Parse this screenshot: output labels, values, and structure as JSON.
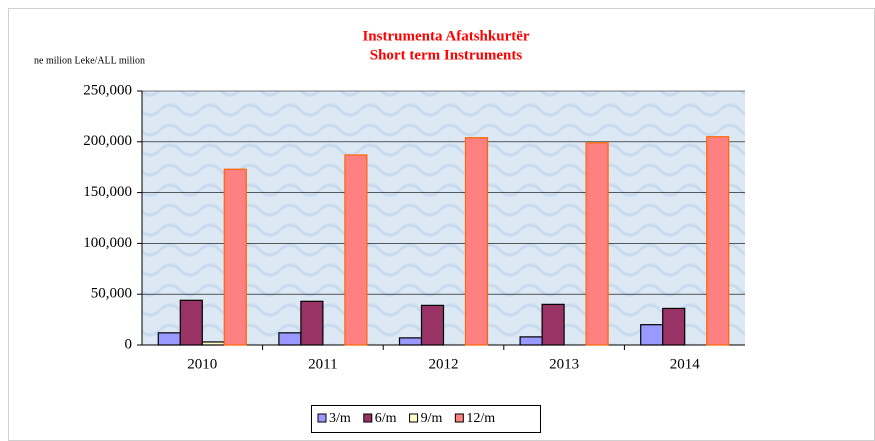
{
  "chart_data": {
    "type": "bar",
    "title": "Instrumenta Afatshkurtër",
    "subtitle": "Short term Instruments",
    "y_label": "ne milion Leke/ALL milion",
    "categories": [
      "2010",
      "2011",
      "2012",
      "2013",
      "2014"
    ],
    "series": [
      {
        "name": "3/m",
        "color": "#9999ff",
        "values": [
          12000,
          12000,
          7000,
          8000,
          20000
        ]
      },
      {
        "name": "6/m",
        "color": "#993366",
        "values": [
          44000,
          43000,
          39000,
          40000,
          36000
        ]
      },
      {
        "name": "9/m",
        "color": "#ffffcc",
        "values": [
          3000,
          0,
          0,
          0,
          0
        ]
      },
      {
        "name": "12/m",
        "color": "#ff8080",
        "values": [
          173000,
          187000,
          204000,
          199000,
          205000
        ]
      }
    ],
    "ylim": [
      0,
      250000
    ],
    "yticks": [
      0,
      {
        "value": 50000,
        "label": "50,000"
      },
      {
        "value": 100000,
        "label": "100,000"
      },
      {
        "value": 150000,
        "label": "150,000"
      },
      {
        "value": 200000,
        "label": "200,000"
      },
      {
        "value": 250000,
        "label": "250,000"
      }
    ],
    "grid": true,
    "legend": "bottom"
  }
}
